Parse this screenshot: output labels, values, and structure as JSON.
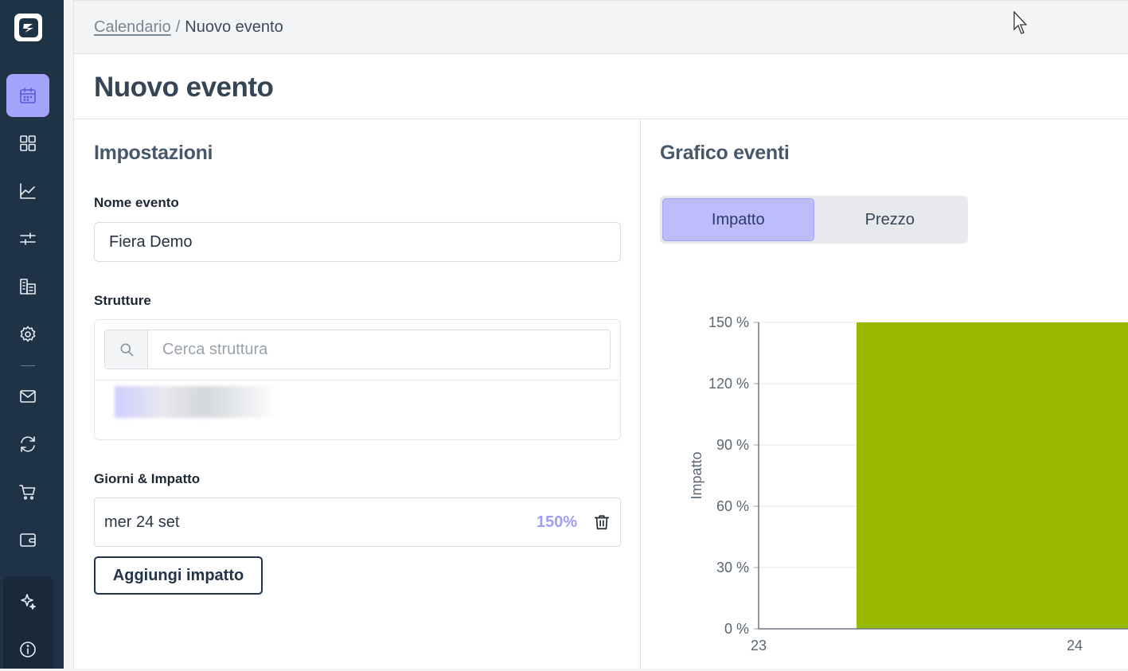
{
  "breadcrumb": {
    "parent": "Calendario",
    "separator": "/",
    "current": "Nuovo evento"
  },
  "page": {
    "title": "Nuovo evento"
  },
  "settings": {
    "title": "Impostazioni",
    "event_name_label": "Nome evento",
    "event_name_value": "Fiera Demo",
    "structures_label": "Strutture",
    "structures_search_placeholder": "Cerca struttura",
    "days_label": "Giorni & Impatto",
    "days": [
      {
        "date": "mer 24 set",
        "impact": "150%"
      }
    ],
    "add_impact_label": "Aggiungi impatto"
  },
  "chart_panel": {
    "title": "Grafico eventi",
    "tabs": [
      {
        "label": "Impatto",
        "active": true
      },
      {
        "label": "Prezzo",
        "active": false
      }
    ]
  },
  "sidebar": {
    "items": [
      {
        "icon": "calendar-icon",
        "active": true
      },
      {
        "icon": "dashboard-grid-icon",
        "active": false
      },
      {
        "icon": "chart-line-icon",
        "active": false
      },
      {
        "icon": "sliders-icon",
        "active": false
      },
      {
        "icon": "buildings-icon",
        "active": false
      },
      {
        "icon": "gear-icon",
        "active": false
      },
      {
        "icon": "mail-icon",
        "active": false
      },
      {
        "icon": "sync-icon",
        "active": false
      },
      {
        "icon": "cart-icon",
        "active": false
      },
      {
        "icon": "wallet-icon",
        "active": false
      },
      {
        "icon": "sparkles-icon",
        "active": false
      },
      {
        "icon": "info-icon",
        "active": false
      }
    ]
  },
  "colors": {
    "accent": "#a4a3fb",
    "sidebar": "#1f3347",
    "bar": "#99b800",
    "impact_text": "#a09ff7"
  },
  "chart_data": {
    "type": "bar",
    "ylabel": "Impatto",
    "xlabel": "",
    "ylim": [
      0,
      150
    ],
    "y_ticks": [
      "0 %",
      "30 %",
      "60 %",
      "90 %",
      "120 %",
      "150 %"
    ],
    "x_ticks": [
      "23",
      "24"
    ],
    "categories": [
      "24"
    ],
    "values": [
      150
    ],
    "grid": true
  }
}
